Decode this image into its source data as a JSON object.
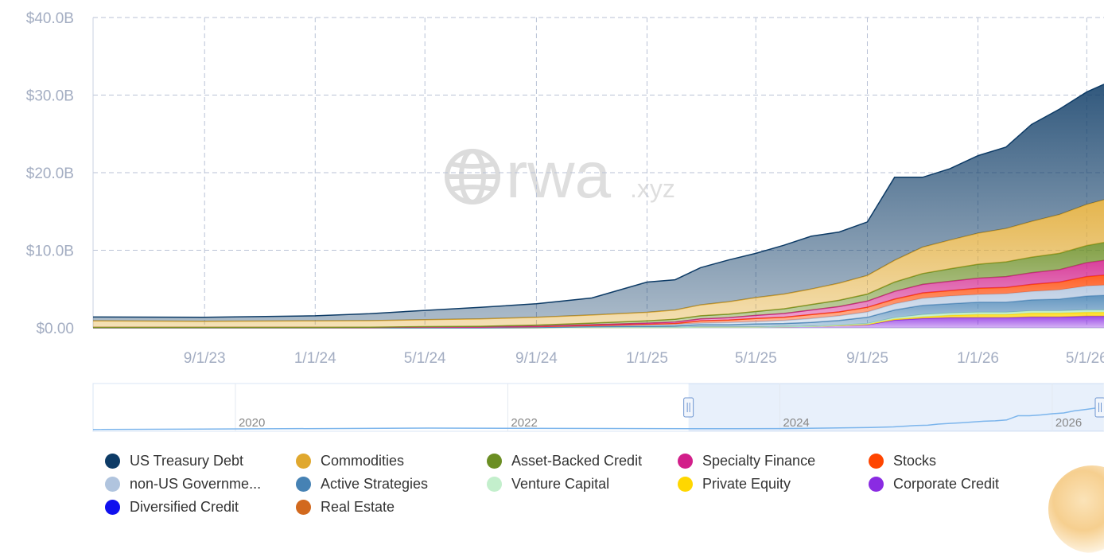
{
  "chart_data": {
    "type": "area",
    "stacked": true,
    "watermark": {
      "main": "rwa",
      "suffix": ".xyz"
    },
    "y_ticks": [
      "$0.00",
      "$10.0B",
      "$20.0B",
      "$30.0B",
      "$40.0B"
    ],
    "ylim": [
      0,
      40
    ],
    "ylabel": "",
    "xlabel": "",
    "x_ticks": [
      {
        "date": "2023-09-01",
        "label": "9/1/23"
      },
      {
        "date": "2024-01-01",
        "label": "1/1/24"
      },
      {
        "date": "2024-05-01",
        "label": "5/1/24"
      },
      {
        "date": "2024-09-01",
        "label": "9/1/24"
      },
      {
        "date": "2025-01-01",
        "label": "1/1/25"
      },
      {
        "date": "2025-05-01",
        "label": "5/1/25"
      },
      {
        "date": "2025-09-01",
        "label": "9/1/25"
      },
      {
        "date": "2026-01-01",
        "label": "1/1/26"
      },
      {
        "date": "2026-05-01",
        "label": "5/1/26"
      }
    ],
    "xlim": [
      "2023-05-01",
      "2026-05-20"
    ],
    "grid": true,
    "legend_position": "bottom",
    "x": [
      "2023-05-01",
      "2023-09-01",
      "2024-01-01",
      "2024-03-01",
      "2024-05-01",
      "2024-07-01",
      "2024-09-01",
      "2024-11-01",
      "2025-01-01",
      "2025-02-01",
      "2025-03-01",
      "2025-04-01",
      "2025-05-01",
      "2025-06-01",
      "2025-07-01",
      "2025-08-01",
      "2025-09-01",
      "2025-10-01",
      "2025-11-01",
      "2025-12-01",
      "2026-01-01",
      "2026-02-01",
      "2026-03-01",
      "2026-04-01",
      "2026-05-01",
      "2026-05-20"
    ],
    "series": [
      {
        "name": "Corporate Credit",
        "color": "#8a2be2",
        "values": [
          0,
          0,
          0,
          0,
          0,
          0,
          0,
          0.05,
          0.05,
          0.05,
          0.1,
          0.1,
          0.1,
          0.15,
          0.2,
          0.3,
          0.4,
          1.0,
          1.2,
          1.3,
          1.3,
          1.3,
          1.4,
          1.4,
          1.5,
          1.5
        ]
      },
      {
        "name": "Private Equity",
        "color": "#ffd700",
        "values": [
          0,
          0,
          0,
          0,
          0,
          0,
          0,
          0,
          0,
          0,
          0,
          0,
          0,
          0,
          0,
          0,
          0.05,
          0.1,
          0.2,
          0.3,
          0.4,
          0.4,
          0.5,
          0.5,
          0.5,
          0.5
        ]
      },
      {
        "name": "Venture Capital",
        "color": "#b7e9c2",
        "values": [
          0,
          0,
          0,
          0,
          0,
          0,
          0,
          0,
          0,
          0,
          0,
          0,
          0,
          0,
          0,
          0.05,
          0.1,
          0.2,
          0.3,
          0.3,
          0.3,
          0.3,
          0.3,
          0.3,
          0.3,
          0.3
        ]
      },
      {
        "name": "Active Strategies",
        "color": "#4682b4",
        "values": [
          0,
          0,
          0,
          0,
          0,
          0,
          0.05,
          0.1,
          0.15,
          0.2,
          0.3,
          0.3,
          0.4,
          0.4,
          0.5,
          0.6,
          0.8,
          1.0,
          1.2,
          1.2,
          1.3,
          1.3,
          1.4,
          1.5,
          1.8,
          1.9
        ]
      },
      {
        "name": "non-US Government Debt",
        "color": "#b0c4de",
        "values": [
          0.05,
          0.05,
          0.05,
          0.05,
          0.1,
          0.1,
          0.1,
          0.15,
          0.2,
          0.2,
          0.2,
          0.3,
          0.3,
          0.4,
          0.5,
          0.6,
          0.7,
          0.8,
          0.9,
          1.0,
          1.0,
          1.1,
          1.1,
          1.2,
          1.3,
          1.3
        ]
      },
      {
        "name": "Stocks",
        "color": "#ff4500",
        "values": [
          0,
          0,
          0,
          0,
          0,
          0,
          0,
          0,
          0.05,
          0.1,
          0.3,
          0.3,
          0.4,
          0.4,
          0.5,
          0.5,
          0.6,
          0.6,
          0.7,
          0.7,
          0.8,
          0.8,
          0.9,
          1.0,
          1.2,
          1.3
        ]
      },
      {
        "name": "Specialty Finance",
        "color": "#d21f8a",
        "values": [
          0,
          0,
          0,
          0,
          0,
          0,
          0.05,
          0.1,
          0.15,
          0.2,
          0.25,
          0.3,
          0.4,
          0.5,
          0.6,
          0.7,
          0.8,
          1.0,
          1.1,
          1.2,
          1.3,
          1.4,
          1.5,
          1.6,
          1.8,
          1.9
        ]
      },
      {
        "name": "Asset-Backed Credit",
        "color": "#6b8e23",
        "values": [
          0,
          0,
          0,
          0.02,
          0.05,
          0.1,
          0.15,
          0.2,
          0.3,
          0.35,
          0.4,
          0.45,
          0.5,
          0.6,
          0.7,
          0.8,
          0.9,
          1.2,
          1.4,
          1.6,
          1.8,
          1.9,
          2.0,
          2.1,
          2.2,
          2.3
        ]
      },
      {
        "name": "Commodities",
        "color": "#e0a82e",
        "values": [
          0.85,
          0.8,
          0.85,
          0.85,
          0.9,
          0.95,
          1.0,
          1.05,
          1.1,
          1.2,
          1.4,
          1.6,
          1.8,
          1.9,
          2.0,
          2.2,
          2.4,
          2.8,
          3.4,
          3.7,
          4.0,
          4.3,
          4.6,
          5.0,
          5.3,
          5.5
        ]
      },
      {
        "name": "US Treasury Debt",
        "color": "#0d3b66",
        "values": [
          0.5,
          0.5,
          0.65,
          0.9,
          1.2,
          1.5,
          1.75,
          2.2,
          3.9,
          3.9,
          4.8,
          5.4,
          5.7,
          6.3,
          6.8,
          6.6,
          6.9,
          10.7,
          9.0,
          9.2,
          10.0,
          10.5,
          12.5,
          13.6,
          14.5,
          14.9
        ]
      },
      {
        "name": "Diversified Credit",
        "color": "#1010ee",
        "values": [
          0,
          0,
          0,
          0,
          0,
          0,
          0,
          0,
          0,
          0,
          0,
          0,
          0,
          0,
          0,
          0,
          0,
          0,
          0,
          0,
          0,
          0,
          0,
          0,
          0,
          0
        ]
      },
      {
        "name": "Real Estate",
        "color": "#d2691e",
        "values": [
          0,
          0,
          0,
          0,
          0,
          0,
          0,
          0,
          0,
          0,
          0,
          0,
          0,
          0,
          0,
          0,
          0,
          0,
          0,
          0,
          0,
          0,
          0,
          0,
          0,
          0
        ]
      }
    ]
  },
  "navigator": {
    "x_ticks": [
      {
        "date": "2020-01-01",
        "label": "2020"
      },
      {
        "date": "2022-01-01",
        "label": "2022"
      },
      {
        "date": "2024-01-01",
        "label": "2024"
      },
      {
        "date": "2026-01-01",
        "label": "2026"
      }
    ],
    "range": [
      "2018-12-15",
      "2026-05-20"
    ],
    "selected": [
      "2023-05-01",
      "2026-05-20"
    ],
    "line_color": "#7cb5ec"
  },
  "legend": [
    {
      "label": "US Treasury Debt",
      "color": "#0d3b66"
    },
    {
      "label": "Commodities",
      "color": "#e0a82e"
    },
    {
      "label": "Asset-Backed Credit",
      "color": "#6b8e23"
    },
    {
      "label": "Specialty Finance",
      "color": "#d21f8a"
    },
    {
      "label": "Stocks",
      "color": "#ff4500"
    },
    {
      "label": "non-US Governme...",
      "color": "#b0c4de"
    },
    {
      "label": "Active Strategies",
      "color": "#4682b4"
    },
    {
      "label": "Venture Capital",
      "color": "#c3efcc"
    },
    {
      "label": "Private Equity",
      "color": "#ffd700"
    },
    {
      "label": "Corporate Credit",
      "color": "#8a2be2"
    },
    {
      "label": "Diversified Credit",
      "color": "#1010ee"
    },
    {
      "label": "Real Estate",
      "color": "#d2691e"
    }
  ]
}
